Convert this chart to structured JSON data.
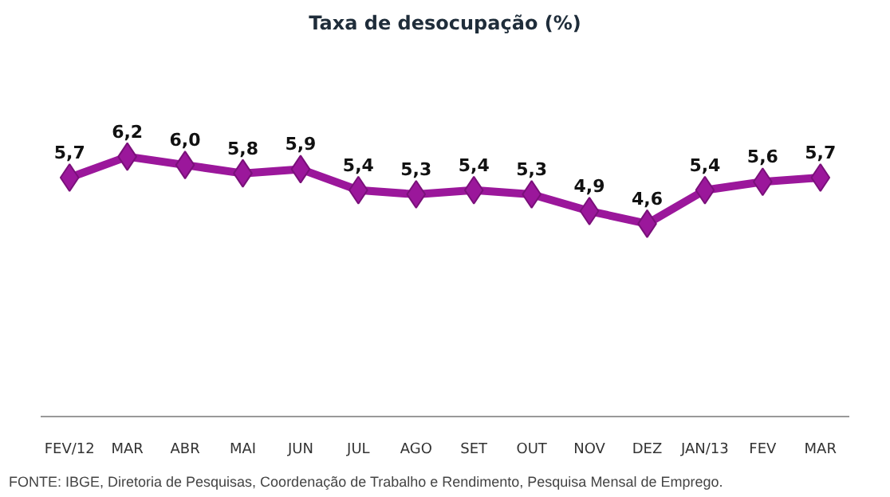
{
  "chart_data": {
    "type": "line",
    "title": "Taxa de desocupação (%)",
    "categories": [
      "FEV/12",
      "MAR",
      "ABR",
      "MAI",
      "JUN",
      "JUL",
      "AGO",
      "SET",
      "OUT",
      "NOV",
      "DEZ",
      "JAN/13",
      "FEV",
      "MAR"
    ],
    "series": [
      {
        "color": "#9b179b",
        "values": [
          5.7,
          6.2,
          6.0,
          5.8,
          5.9,
          5.4,
          5.3,
          5.4,
          5.3,
          4.9,
          4.6,
          5.4,
          5.6,
          5.7
        ],
        "value_labels": [
          "5,7",
          "6,2",
          "6,0",
          "5,8",
          "5,9",
          "5,4",
          "5,3",
          "5,4",
          "5,3",
          "4,9",
          "4,6",
          "5,4",
          "5,6",
          "5,7"
        ]
      }
    ],
    "tick_labels": "x",
    "marker": "diamond",
    "line_style": "solid",
    "grid": false,
    "annotations": [
      "FONTE: IBGE, Diretoria de Pesquisas, Coordenação de Trabalho e Rendimento, Pesquisa Mensal de Emprego."
    ]
  }
}
